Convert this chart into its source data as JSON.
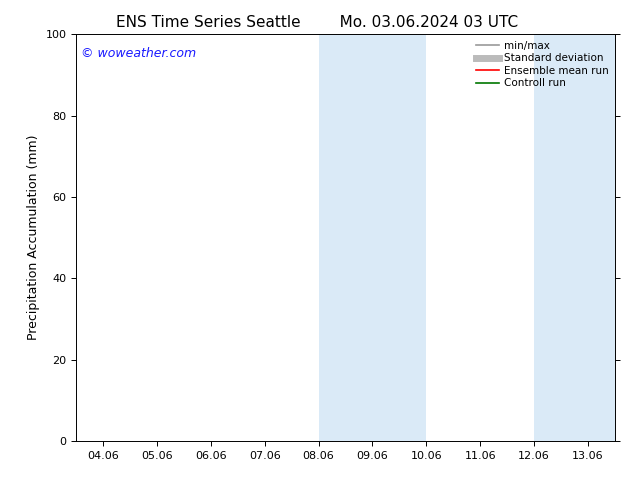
{
  "title_left": "ENS Time Series Seattle",
  "title_right": "Mo. 03.06.2024 03 UTC",
  "ylabel": "Precipitation Accumulation (mm)",
  "ylim": [
    0,
    100
  ],
  "yticks": [
    0,
    20,
    40,
    60,
    80,
    100
  ],
  "xtick_labels": [
    "04.06",
    "05.06",
    "06.06",
    "07.06",
    "08.06",
    "09.06",
    "10.06",
    "11.06",
    "12.06",
    "13.06"
  ],
  "bg_color": "#ffffff",
  "plot_bg_color": "#ffffff",
  "shaded_regions": [
    {
      "xstart": 4,
      "xend": 6,
      "color": "#daeaf7"
    },
    {
      "xstart": 8,
      "xend": 9.5,
      "color": "#daeaf7"
    }
  ],
  "watermark_text": "© woweather.com",
  "watermark_color": "#1a1aff",
  "legend_items": [
    {
      "label": "min/max",
      "color": "#999999",
      "lw": 1.2,
      "style": "solid"
    },
    {
      "label": "Standard deviation",
      "color": "#bbbbbb",
      "lw": 5,
      "style": "solid"
    },
    {
      "label": "Ensemble mean run",
      "color": "#ff0000",
      "lw": 1.2,
      "style": "solid"
    },
    {
      "label": "Controll run",
      "color": "#007700",
      "lw": 1.2,
      "style": "solid"
    }
  ],
  "title_fontsize": 11,
  "tick_fontsize": 8,
  "ylabel_fontsize": 9,
  "watermark_fontsize": 9,
  "legend_fontsize": 7.5
}
